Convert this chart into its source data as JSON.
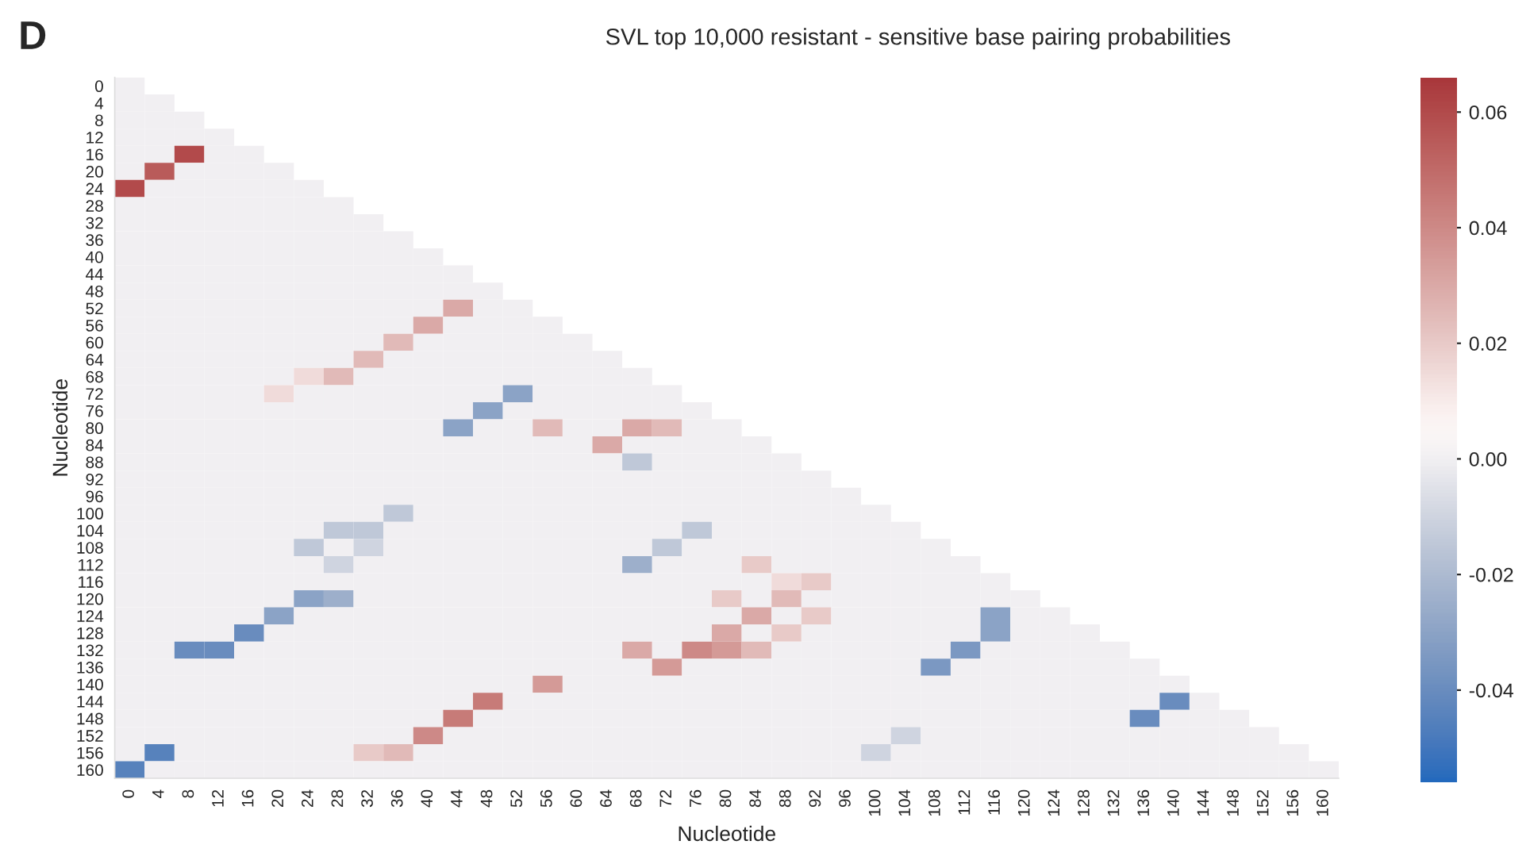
{
  "chart_data": {
    "type": "heatmap",
    "title": "SVL top 10,000 resistant - sensitive base pairing probabilities",
    "xlabel": "Nucleotide",
    "ylabel": "Nucleotide",
    "annotations": [
      "D"
    ],
    "grid": false,
    "categories": [
      "0",
      "4",
      "8",
      "12",
      "16",
      "20",
      "24",
      "28",
      "32",
      "36",
      "40",
      "44",
      "48",
      "52",
      "56",
      "60",
      "64",
      "68",
      "72",
      "76",
      "80",
      "84",
      "88",
      "92",
      "96",
      "100",
      "104",
      "108",
      "112",
      "116",
      "120",
      "124",
      "128",
      "132",
      "136",
      "140",
      "144",
      "148",
      "152",
      "156",
      "160"
    ],
    "y_categories": [
      "0",
      "4",
      "8",
      "12",
      "16",
      "20",
      "24",
      "28",
      "32",
      "36",
      "40",
      "44",
      "48",
      "52",
      "56",
      "60",
      "64",
      "68",
      "72",
      "76",
      "80",
      "84",
      "88",
      "92",
      "96",
      "100",
      "104",
      "108",
      "112",
      "116",
      "120",
      "124",
      "128",
      "132",
      "136",
      "140",
      "144",
      "148",
      "152",
      "156",
      "160"
    ],
    "clim": [
      -0.056,
      0.066
    ],
    "cticks": [
      -0.04,
      -0.02,
      {
        "value": 0,
        "label": "0.00"
      },
      0.02,
      0.04,
      0.06
    ],
    "cells": [
      [
        0,
        null,
        null,
        null,
        null,
        null,
        null,
        null,
        null,
        null,
        null,
        null,
        null,
        null,
        null,
        null,
        null,
        null,
        null,
        null,
        null,
        null,
        null,
        null,
        null,
        null,
        null,
        null,
        null,
        null,
        null,
        null,
        null,
        null,
        null,
        null,
        null,
        null,
        null,
        null,
        null
      ],
      [
        0,
        0,
        null,
        null,
        null,
        null,
        null,
        null,
        null,
        null,
        null,
        null,
        null,
        null,
        null,
        null,
        null,
        null,
        null,
        null,
        null,
        null,
        null,
        null,
        null,
        null,
        null,
        null,
        null,
        null,
        null,
        null,
        null,
        null,
        null,
        null,
        null,
        null,
        null,
        null,
        null
      ],
      [
        0,
        0,
        0,
        null,
        null,
        null,
        null,
        null,
        null,
        null,
        null,
        null,
        null,
        null,
        null,
        null,
        null,
        null,
        null,
        null,
        null,
        null,
        null,
        null,
        null,
        null,
        null,
        null,
        null,
        null,
        null,
        null,
        null,
        null,
        null,
        null,
        null,
        null,
        null,
        null,
        null
      ],
      [
        0,
        0,
        0,
        0,
        null,
        null,
        null,
        null,
        null,
        null,
        null,
        null,
        null,
        null,
        null,
        null,
        null,
        null,
        null,
        null,
        null,
        null,
        null,
        null,
        null,
        null,
        null,
        null,
        null,
        null,
        null,
        null,
        null,
        null,
        null,
        null,
        null,
        null,
        null,
        null,
        null
      ],
      [
        0,
        0,
        0.06,
        0,
        0,
        null,
        null,
        null,
        null,
        null,
        null,
        null,
        null,
        null,
        null,
        null,
        null,
        null,
        null,
        null,
        null,
        null,
        null,
        null,
        null,
        null,
        null,
        null,
        null,
        null,
        null,
        null,
        null,
        null,
        null,
        null,
        null,
        null,
        null,
        null,
        null
      ],
      [
        0,
        0.055,
        0,
        0,
        0,
        0,
        null,
        null,
        null,
        null,
        null,
        null,
        null,
        null,
        null,
        null,
        null,
        null,
        null,
        null,
        null,
        null,
        null,
        null,
        null,
        null,
        null,
        null,
        null,
        null,
        null,
        null,
        null,
        null,
        null,
        null,
        null,
        null,
        null,
        null,
        null
      ],
      [
        0.06,
        0,
        0,
        0,
        0,
        0,
        0,
        null,
        null,
        null,
        null,
        null,
        null,
        null,
        null,
        null,
        null,
        null,
        null,
        null,
        null,
        null,
        null,
        null,
        null,
        null,
        null,
        null,
        null,
        null,
        null,
        null,
        null,
        null,
        null,
        null,
        null,
        null,
        null,
        null,
        null
      ],
      [
        0,
        0,
        0,
        0,
        0,
        0,
        0,
        0,
        null,
        null,
        null,
        null,
        null,
        null,
        null,
        null,
        null,
        null,
        null,
        null,
        null,
        null,
        null,
        null,
        null,
        null,
        null,
        null,
        null,
        null,
        null,
        null,
        null,
        null,
        null,
        null,
        null,
        null,
        null,
        null,
        null
      ],
      [
        0,
        0,
        0,
        0,
        0,
        0,
        0,
        0,
        0,
        null,
        null,
        null,
        null,
        null,
        null,
        null,
        null,
        null,
        null,
        null,
        null,
        null,
        null,
        null,
        null,
        null,
        null,
        null,
        null,
        null,
        null,
        null,
        null,
        null,
        null,
        null,
        null,
        null,
        null,
        null,
        null
      ],
      [
        0,
        0,
        0,
        0,
        0,
        0,
        0,
        0,
        0,
        0,
        null,
        null,
        null,
        null,
        null,
        null,
        null,
        null,
        null,
        null,
        null,
        null,
        null,
        null,
        null,
        null,
        null,
        null,
        null,
        null,
        null,
        null,
        null,
        null,
        null,
        null,
        null,
        null,
        null,
        null,
        null
      ],
      [
        0,
        0,
        0,
        0,
        0,
        0,
        0,
        0,
        0,
        0,
        0,
        null,
        null,
        null,
        null,
        null,
        null,
        null,
        null,
        null,
        null,
        null,
        null,
        null,
        null,
        null,
        null,
        null,
        null,
        null,
        null,
        null,
        null,
        null,
        null,
        null,
        null,
        null,
        null,
        null,
        null
      ],
      [
        0,
        0,
        0,
        0,
        0,
        0,
        0,
        0,
        0,
        0,
        0,
        0,
        null,
        null,
        null,
        null,
        null,
        null,
        null,
        null,
        null,
        null,
        null,
        null,
        null,
        null,
        null,
        null,
        null,
        null,
        null,
        null,
        null,
        null,
        null,
        null,
        null,
        null,
        null,
        null,
        null
      ],
      [
        0,
        0,
        0,
        0,
        0,
        0,
        0,
        0,
        0,
        0,
        0,
        0,
        0,
        null,
        null,
        null,
        null,
        null,
        null,
        null,
        null,
        null,
        null,
        null,
        null,
        null,
        null,
        null,
        null,
        null,
        null,
        null,
        null,
        null,
        null,
        null,
        null,
        null,
        null,
        null,
        null
      ],
      [
        0,
        0,
        0,
        0,
        0,
        0,
        0,
        0,
        0,
        0,
        0,
        0.03,
        0,
        0,
        null,
        null,
        null,
        null,
        null,
        null,
        null,
        null,
        null,
        null,
        null,
        null,
        null,
        null,
        null,
        null,
        null,
        null,
        null,
        null,
        null,
        null,
        null,
        null,
        null,
        null,
        null
      ],
      [
        0,
        0,
        0,
        0,
        0,
        0,
        0,
        0,
        0,
        0,
        0.03,
        0,
        0,
        0,
        0,
        null,
        null,
        null,
        null,
        null,
        null,
        null,
        null,
        null,
        null,
        null,
        null,
        null,
        null,
        null,
        null,
        null,
        null,
        null,
        null,
        null,
        null,
        null,
        null,
        null,
        null
      ],
      [
        0,
        0,
        0,
        0,
        0,
        0,
        0,
        0,
        0,
        0.025,
        0,
        0,
        0,
        0,
        0,
        0,
        null,
        null,
        null,
        null,
        null,
        null,
        null,
        null,
        null,
        null,
        null,
        null,
        null,
        null,
        null,
        null,
        null,
        null,
        null,
        null,
        null,
        null,
        null,
        null,
        null
      ],
      [
        0,
        0,
        0,
        0,
        0,
        0,
        0,
        0,
        0.025,
        0,
        0,
        0,
        0,
        0,
        0,
        0,
        0,
        null,
        null,
        null,
        null,
        null,
        null,
        null,
        null,
        null,
        null,
        null,
        null,
        null,
        null,
        null,
        null,
        null,
        null,
        null,
        null,
        null,
        null,
        null,
        null
      ],
      [
        0,
        0,
        0,
        0,
        0,
        0,
        0.015,
        0.025,
        0,
        0,
        0,
        0,
        0,
        0,
        0,
        0,
        0,
        0,
        null,
        null,
        null,
        null,
        null,
        null,
        null,
        null,
        null,
        null,
        null,
        null,
        null,
        null,
        null,
        null,
        null,
        null,
        null,
        null,
        null,
        null,
        null
      ],
      [
        0,
        0,
        0,
        0,
        0,
        0.015,
        0,
        0,
        0,
        0,
        0,
        0,
        0,
        -0.03,
        0,
        0,
        0,
        0,
        0,
        null,
        null,
        null,
        null,
        null,
        null,
        null,
        null,
        null,
        null,
        null,
        null,
        null,
        null,
        null,
        null,
        null,
        null,
        null,
        null,
        null,
        null
      ],
      [
        0,
        0,
        0,
        0,
        0,
        0,
        0,
        0,
        0,
        0,
        0,
        0,
        -0.03,
        0,
        0,
        0,
        0,
        0,
        0,
        0,
        null,
        null,
        null,
        null,
        null,
        null,
        null,
        null,
        null,
        null,
        null,
        null,
        null,
        null,
        null,
        null,
        null,
        null,
        null,
        null,
        null
      ],
      [
        0,
        0,
        0,
        0,
        0,
        0,
        0,
        0,
        0,
        0,
        0,
        -0.03,
        0,
        0,
        0.025,
        0,
        0,
        0.03,
        0.025,
        0,
        0,
        null,
        null,
        null,
        null,
        null,
        null,
        null,
        null,
        null,
        null,
        null,
        null,
        null,
        null,
        null,
        null,
        null,
        null,
        null,
        null
      ],
      [
        0,
        0,
        0,
        0,
        0,
        0,
        0,
        0,
        0,
        0,
        0,
        0,
        0,
        0,
        0,
        0,
        0.03,
        0,
        0,
        0,
        0,
        0,
        null,
        null,
        null,
        null,
        null,
        null,
        null,
        null,
        null,
        null,
        null,
        null,
        null,
        null,
        null,
        null,
        null,
        null,
        null
      ],
      [
        0,
        0,
        0,
        0,
        0,
        0,
        0,
        0,
        0,
        0,
        0,
        0,
        0,
        0,
        0,
        0,
        0,
        -0.015,
        0,
        0,
        0,
        0,
        0,
        null,
        null,
        null,
        null,
        null,
        null,
        null,
        null,
        null,
        null,
        null,
        null,
        null,
        null,
        null,
        null,
        null,
        null
      ],
      [
        0,
        0,
        0,
        0,
        0,
        0,
        0,
        0,
        0,
        0,
        0,
        0,
        0,
        0,
        0,
        0,
        0,
        0,
        0,
        0,
        0,
        0,
        0,
        0,
        null,
        null,
        null,
        null,
        null,
        null,
        null,
        null,
        null,
        null,
        null,
        null,
        null,
        null,
        null,
        null,
        null
      ],
      [
        0,
        0,
        0,
        0,
        0,
        0,
        0,
        0,
        0,
        0,
        0,
        0,
        0,
        0,
        0,
        0,
        0,
        0,
        0,
        0,
        0,
        0,
        0,
        0,
        0,
        null,
        null,
        null,
        null,
        null,
        null,
        null,
        null,
        null,
        null,
        null,
        null,
        null,
        null,
        null,
        null
      ],
      [
        0,
        0,
        0,
        0,
        0,
        0,
        0,
        0,
        0,
        -0.015,
        0,
        0,
        0,
        0,
        0,
        0,
        0,
        0,
        0,
        0,
        0,
        0,
        0,
        0,
        0,
        0,
        null,
        null,
        null,
        null,
        null,
        null,
        null,
        null,
        null,
        null,
        null,
        null,
        null,
        null,
        null
      ],
      [
        0,
        0,
        0,
        0,
        0,
        0,
        0,
        -0.015,
        -0.015,
        0,
        0,
        0,
        0,
        0,
        0,
        0,
        0,
        0,
        0,
        -0.015,
        0,
        0,
        0,
        0,
        0,
        0,
        0,
        null,
        null,
        null,
        null,
        null,
        null,
        null,
        null,
        null,
        null,
        null,
        null,
        null,
        null
      ],
      [
        0,
        0,
        0,
        0,
        0,
        0,
        -0.015,
        0,
        -0.01,
        0,
        0,
        0,
        0,
        0,
        0,
        0,
        0,
        0,
        -0.015,
        0,
        0,
        0,
        0,
        0,
        0,
        0,
        0,
        0,
        null,
        null,
        null,
        null,
        null,
        null,
        null,
        null,
        null,
        null,
        null,
        null,
        null
      ],
      [
        0,
        0,
        0,
        0,
        0,
        0,
        0,
        -0.01,
        0,
        0,
        0,
        0,
        0,
        0,
        0,
        0,
        0,
        -0.025,
        0,
        0,
        0,
        0.02,
        0,
        0,
        0,
        0,
        0,
        0,
        0,
        null,
        null,
        null,
        null,
        null,
        null,
        null,
        null,
        null,
        null,
        null,
        null
      ],
      [
        0,
        0,
        0,
        0,
        0,
        0,
        0,
        0,
        0,
        0,
        0,
        0,
        0,
        0,
        0,
        0,
        0,
        0,
        0,
        0,
        0,
        0,
        0.015,
        0.02,
        0,
        0,
        0,
        0,
        0,
        0,
        null,
        null,
        null,
        null,
        null,
        null,
        null,
        null,
        null,
        null,
        null
      ],
      [
        0,
        0,
        0,
        0,
        0,
        0,
        -0.03,
        -0.025,
        0,
        0,
        0,
        0,
        0,
        0,
        0,
        0,
        0,
        0,
        0,
        0,
        0.02,
        0,
        0.025,
        0,
        0,
        0,
        0,
        0,
        0,
        0,
        0,
        null,
        null,
        null,
        null,
        null,
        null,
        null,
        null,
        null,
        null
      ],
      [
        0,
        0,
        0,
        0,
        0,
        -0.03,
        0,
        0,
        0,
        0,
        0,
        0,
        0,
        0,
        0,
        0,
        0,
        0,
        0,
        0,
        0,
        0.03,
        0,
        0.02,
        0,
        0,
        0,
        0,
        0,
        -0.03,
        0,
        0,
        null,
        null,
        null,
        null,
        null,
        null,
        null,
        null,
        null
      ],
      [
        0,
        0,
        0,
        0,
        -0.04,
        0,
        0,
        0,
        0,
        0,
        0,
        0,
        0,
        0,
        0,
        0,
        0,
        0,
        0,
        0,
        0.03,
        0,
        0.02,
        0,
        0,
        0,
        0,
        0,
        0,
        -0.03,
        0,
        0,
        0,
        null,
        null,
        null,
        null,
        null,
        null,
        null,
        null
      ],
      [
        0,
        0,
        -0.04,
        -0.04,
        0,
        0,
        0,
        0,
        0,
        0,
        0,
        0,
        0,
        0,
        0,
        0,
        0,
        0.03,
        0,
        0.04,
        0.035,
        0.025,
        0,
        0,
        0,
        0,
        0,
        0,
        -0.035,
        0,
        0,
        0,
        0,
        0,
        null,
        null,
        null,
        null,
        null,
        null,
        null
      ],
      [
        0,
        0,
        0,
        0,
        0,
        0,
        0,
        0,
        0,
        0,
        0,
        0,
        0,
        0,
        0,
        0,
        0,
        0,
        0.035,
        0,
        0,
        0,
        0,
        0,
        0,
        0,
        0,
        -0.035,
        0,
        0,
        0,
        0,
        0,
        0,
        0,
        null,
        null,
        null,
        null,
        null,
        null
      ],
      [
        0,
        0,
        0,
        0,
        0,
        0,
        0,
        0,
        0,
        0,
        0,
        0,
        0,
        0,
        0.035,
        0,
        0,
        0,
        0,
        0,
        0,
        0,
        0,
        0,
        0,
        0,
        0,
        0,
        0,
        0,
        0,
        0,
        0,
        0,
        0,
        0,
        null,
        null,
        null,
        null,
        null
      ],
      [
        0,
        0,
        0,
        0,
        0,
        0,
        0,
        0,
        0,
        0,
        0,
        0,
        0.045,
        0,
        0,
        0,
        0,
        0,
        0,
        0,
        0,
        0,
        0,
        0,
        0,
        0,
        0,
        0,
        0,
        0,
        0,
        0,
        0,
        0,
        0,
        -0.04,
        0,
        null,
        null,
        null,
        null
      ],
      [
        0,
        0,
        0,
        0,
        0,
        0,
        0,
        0,
        0,
        0,
        0,
        0.045,
        0,
        0,
        0,
        0,
        0,
        0,
        0,
        0,
        0,
        0,
        0,
        0,
        0,
        0,
        0,
        0,
        0,
        0,
        0,
        0,
        0,
        0,
        -0.04,
        0,
        0,
        0,
        null,
        null,
        null
      ],
      [
        0,
        0,
        0,
        0,
        0,
        0,
        0,
        0,
        0,
        0,
        0.04,
        0,
        0,
        0,
        0,
        0,
        0,
        0,
        0,
        0,
        0,
        0,
        0,
        0,
        0,
        0,
        -0.01,
        0,
        0,
        0,
        0,
        0,
        0,
        0,
        0,
        0,
        0,
        0,
        0,
        null,
        null
      ],
      [
        0,
        -0.045,
        0,
        0,
        0,
        0,
        0,
        0,
        0.02,
        0.025,
        0,
        0,
        0,
        0,
        0,
        0,
        0,
        0,
        0,
        0,
        0,
        0,
        0,
        0,
        0,
        -0.01,
        0,
        0,
        0,
        0,
        0,
        0,
        0,
        0,
        0,
        0,
        0,
        0,
        0,
        0,
        null
      ],
      [
        -0.045,
        0,
        0,
        0,
        0,
        0,
        0,
        0,
        0,
        0,
        0,
        0,
        0,
        0,
        0,
        0,
        0,
        0,
        0,
        0,
        0,
        0,
        0,
        0,
        0,
        0,
        0,
        0,
        0,
        0,
        0,
        0,
        0,
        0,
        0,
        0,
        0,
        0,
        0,
        0,
        0
      ]
    ]
  }
}
